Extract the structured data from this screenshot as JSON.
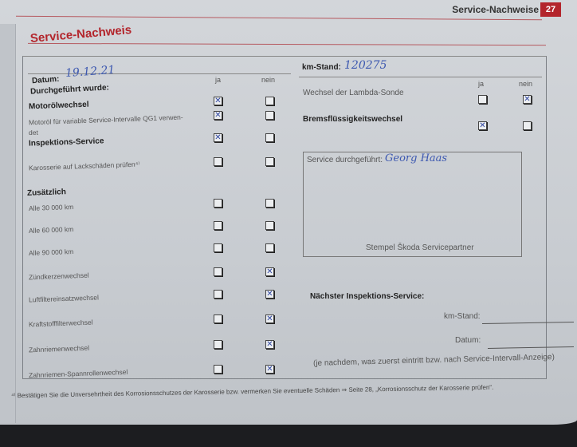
{
  "header": {
    "section": "Service-Nachweise",
    "page": "27"
  },
  "title": "Service-Nachweis",
  "left": {
    "datum_label": "Datum:",
    "datum_value": "19.12.21",
    "performed_label": "Durchgeführt wurde:",
    "col_yes": "ja",
    "col_no": "nein",
    "rows": [
      {
        "label": "Motorölwechsel",
        "bold": true,
        "yes": true,
        "no": false
      },
      {
        "label": "Motoröl für variable Service-Intervalle QG1 verwen-",
        "label2": "det",
        "bold": false,
        "yes": true,
        "no": false
      },
      {
        "label": "Inspektions-Service",
        "bold": true,
        "yes": true,
        "no": false
      },
      {
        "label": "Karosserie auf Lackschäden prüfen⁴⁾",
        "bold": false,
        "yes": false,
        "no": false
      },
      {
        "label": "Alle 30 000 km",
        "bold": false,
        "yes": false,
        "no": false
      },
      {
        "label": "Alle 60 000 km",
        "bold": false,
        "yes": false,
        "no": false
      },
      {
        "label": "Alle 90 000 km",
        "bold": false,
        "yes": false,
        "no": false
      },
      {
        "label": "Zündkerzenwechsel",
        "bold": false,
        "yes": false,
        "no": true
      },
      {
        "label": "Luftfiltereinsatzwechsel",
        "bold": false,
        "yes": false,
        "no": true
      },
      {
        "label": "Kraftstofffilterwechsel",
        "bold": false,
        "yes": false,
        "no": true
      },
      {
        "label": "Zahnriemenwechsel",
        "bold": false,
        "yes": false,
        "no": true
      },
      {
        "label": "Zahnriemen-Spannrollenwechsel",
        "bold": false,
        "yes": false,
        "no": true
      }
    ],
    "additional_label": "Zusätzlich"
  },
  "right": {
    "km_label": "km-Stand:",
    "km_value": "120275",
    "col_yes": "ja",
    "col_no": "nein",
    "rows": [
      {
        "label": "Wechsel der Lambda-Sonde",
        "bold": false,
        "yes": false,
        "no": true
      },
      {
        "label": "Bremsflüssigkeitswechsel",
        "bold": true,
        "yes": true,
        "no": false
      }
    ],
    "service_by_label": "Service durchgeführt:",
    "service_by_value": "Georg Haas",
    "stamp_label": "Stempel Škoda Servicepartner",
    "next_title": "Nächster Inspektions-Service:",
    "next_km_label": "km-Stand:",
    "next_date_label": "Datum:",
    "next_note": "(je nachdem, was zuerst eintritt bzw. nach Service-Intervall-Anzeige)"
  },
  "footnote": "⁴⁾ Bestätigen Sie die Unversehrtheit des Korrosionsschutzes der Karosserie bzw. vermerken Sie eventuelle Schäden ⇒ Seite 28, „Korrosionsschutz der Karosserie prüfen“."
}
